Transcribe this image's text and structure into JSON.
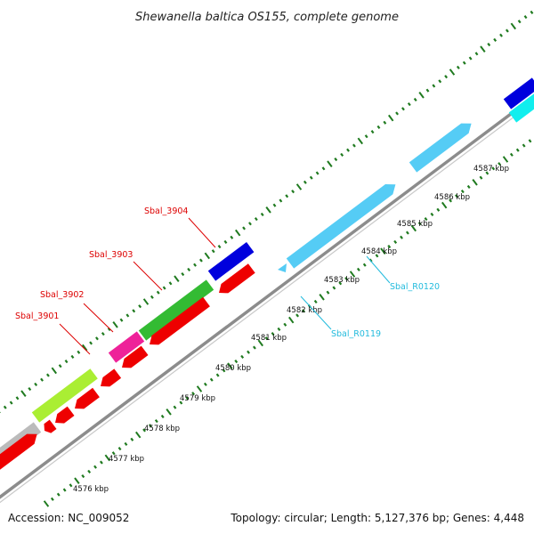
{
  "title": "Shewanella baltica OS155, complete genome",
  "footer": {
    "accession": "Accession: NC_009052",
    "summary": "Topology: circular; Length: 5,127,376 bp; Genes: 4,448"
  },
  "colors": {
    "background": "#ffffff",
    "backbone": "#8c8c8c",
    "tick": "#1f7a1f",
    "red_label": "#dd0000",
    "cyan_label": "#22bbdd",
    "feature_red": "#ee0000",
    "feature_blue": "#0000dd",
    "feature_green": "#33bb33",
    "feature_magenta": "#ee2299",
    "feature_lime": "#aaee33",
    "feature_gray": "#bbbbbb",
    "feature_skyblue": "#55ccf5",
    "feature_cyan": "#11eeee"
  },
  "scale": {
    "unit": "kbp",
    "labels": [
      "4576 kbp",
      "4577 kbp",
      "4578 kbp",
      "4579 kbp",
      "4580 kbp",
      "4581 kbp",
      "4582 kbp",
      "4583 kbp",
      "4584 kbp",
      "4585 kbp",
      "4586 kbp",
      "4587 kbp"
    ]
  },
  "gene_labels": {
    "sbal_3901": "Sbal_3901",
    "sbal_3902": "Sbal_3902",
    "sbal_3903": "Sbal_3903",
    "sbal_3904": "Sbal_3904",
    "sbal_r0119": "Sbal_R0119",
    "sbal_r0120": "Sbal_R0120"
  }
}
